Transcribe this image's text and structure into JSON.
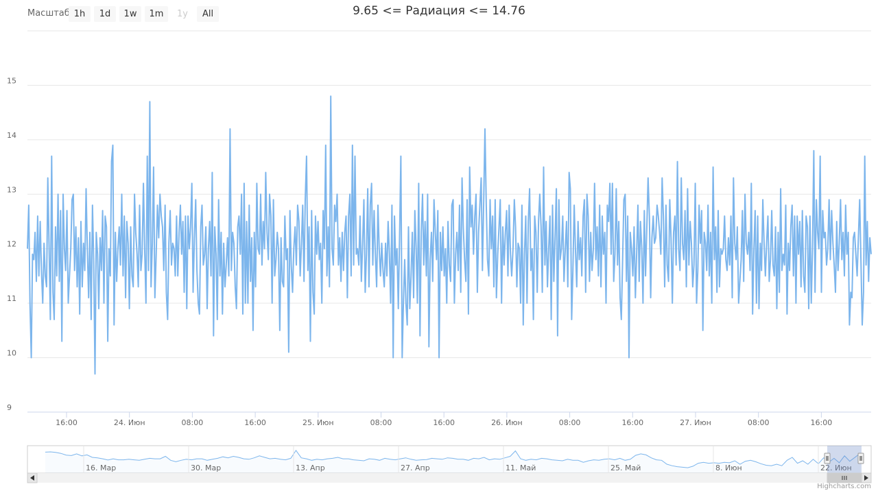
{
  "title": "9.65 <= Радиация <= 14.76",
  "range_selector": {
    "label": "Масштаб",
    "buttons": [
      {
        "label": "1h",
        "state": "normal"
      },
      {
        "label": "1d",
        "state": "normal"
      },
      {
        "label": "1w",
        "state": "normal"
      },
      {
        "label": "1m",
        "state": "normal"
      },
      {
        "label": "1y",
        "state": "disabled"
      },
      {
        "label": "All",
        "state": "normal"
      }
    ]
  },
  "credits": "Highcharts.com",
  "colors": {
    "series": "#7cb5ec",
    "grid": "#e6e6e6",
    "axis_text": "#666666",
    "navigator_mask": "rgba(102,133,194,0.3)",
    "scrollbar_track": "#f2f2f2",
    "scrollbar_thumb": "#cccccc"
  },
  "chart_data": {
    "type": "line",
    "title": "9.65 <= Радиация <= 14.76",
    "xlabel": "",
    "ylabel": "",
    "ylim": [
      9,
      16
    ],
    "yticks": [
      9,
      10,
      11,
      12,
      13,
      14,
      15
    ],
    "grid": true,
    "legend": "none",
    "x_tick_labels": [
      "16:00",
      "24. Июн",
      "08:00",
      "16:00",
      "25. Июн",
      "08:00",
      "16:00",
      "26. Июн",
      "08:00",
      "16:00",
      "27. Июн",
      "08:00",
      "16:00"
    ],
    "series": [
      {
        "values": [
          12.0,
          12.8,
          11.0,
          10.0,
          11.9,
          11.8,
          12.3,
          11.4,
          12.6,
          11.5,
          12.5,
          11.6,
          11.0,
          12.1,
          11.5,
          11.3,
          13.3,
          12.0,
          10.7,
          13.7,
          11.2,
          10.7,
          12.4,
          11.5,
          13.0,
          11.4,
          12.7,
          10.3,
          13.0,
          12.0,
          11.6,
          12.7,
          11.0,
          11.5,
          12.0,
          12.9,
          13.0,
          11.6,
          12.4,
          11.3,
          12.2,
          10.8,
          12.5,
          11.3,
          12.1,
          11.6,
          13.1,
          12.0,
          11.1,
          12.3,
          10.7,
          12.8,
          11.8,
          9.7,
          12.3,
          11.9,
          10.9,
          12.2,
          11.6,
          12.7,
          11.0,
          12.6,
          12.4,
          10.3,
          12.0,
          11.5,
          13.6,
          13.9,
          10.6,
          12.3,
          11.4,
          12.0,
          12.4,
          11.7,
          13.0,
          11.5,
          12.6,
          11.1,
          12.5,
          12.1,
          10.9,
          12.4,
          11.5,
          11.3,
          13.0,
          12.3,
          11.9,
          11.3,
          12.8,
          11.6,
          11.9,
          13.2,
          12.0,
          11.0,
          13.7,
          11.6,
          14.7,
          11.3,
          12.1,
          13.5,
          11.1,
          11.9,
          12.8,
          12.2,
          13.0,
          12.6,
          12.4,
          11.6,
          12.8,
          11.2,
          10.7,
          12.1,
          12.7,
          11.7,
          12.1,
          12.0,
          11.5,
          12.6,
          11.5,
          12.3,
          12.8,
          11.9,
          12.5,
          11.2,
          12.6,
          10.9,
          12.6,
          12.0,
          12.4,
          13.2,
          11.2,
          12.2,
          12.9,
          11.6,
          11.0,
          10.8,
          12.4,
          12.8,
          11.7,
          11.9,
          12.4,
          10.9,
          12.0,
          12.5,
          11.5,
          13.4,
          10.4,
          12.4,
          11.9,
          10.7,
          12.9,
          11.5,
          12.3,
          10.8,
          12.1,
          11.3,
          11.7,
          12.2,
          11.5,
          14.2,
          11.6,
          12.3,
          12.1,
          11.3,
          10.9,
          12.4,
          12.6,
          11.9,
          13.0,
          10.8,
          13.2,
          11.0,
          12.5,
          11.0,
          12.8,
          11.4,
          12.2,
          10.5,
          12.3,
          11.3,
          13.2,
          12.0,
          11.9,
          13.0,
          11.7,
          12.5,
          12.0,
          13.4,
          12.3,
          11.8,
          13.0,
          12.6,
          11.0,
          12.9,
          11.5,
          11.8,
          12.3,
          12.0,
          10.5,
          12.2,
          11.4,
          11.3,
          12.6,
          11.8,
          12.0,
          10.1,
          12.7,
          11.7,
          11.2,
          12.0,
          12.4,
          11.7,
          12.8,
          12.5,
          11.5,
          12.1,
          12.8,
          11.4,
          12.9,
          13.7,
          11.6,
          12.4,
          10.3,
          12.7,
          11.2,
          10.8,
          12.6,
          11.9,
          12.5,
          11.8,
          12.1,
          11.0,
          12.7,
          12.0,
          13.9,
          11.5,
          12.4,
          11.3,
          14.8,
          12.0,
          11.7,
          12.8,
          12.5,
          13.0,
          11.7,
          12.2,
          11.4,
          12.3,
          11.6,
          12.3,
          12.6,
          11.1,
          12.6,
          13.0,
          11.5,
          13.9,
          11.7,
          13.7,
          11.9,
          12.0,
          11.7,
          12.6,
          11.4,
          12.1,
          12.9,
          11.2,
          11.9,
          13.1,
          11.3,
          12.8,
          13.2,
          11.7,
          12.7,
          11.9,
          11.3,
          12.8,
          12.0,
          11.5,
          12.1,
          11.6,
          11.3,
          12.1,
          11.5,
          12.5,
          11.9,
          11.0,
          12.8,
          10.0,
          12.6,
          11.7,
          12.0,
          10.9,
          12.2,
          13.7,
          10.0,
          11.0,
          11.8,
          11.0,
          10.6,
          12.4,
          10.9,
          11.5,
          12.3,
          11.1,
          12.7,
          12.0,
          11.0,
          13.2,
          10.4,
          12.3,
          13.0,
          11.7,
          12.5,
          11.5,
          13.0,
          10.2,
          11.8,
          12.3,
          11.4,
          12.9,
          12.3,
          11.8,
          12.7,
          10.0,
          12.3,
          11.6,
          12.4,
          11.5,
          12.0,
          11.0,
          12.5,
          11.7,
          11.4,
          12.8,
          12.9,
          11.0,
          11.9,
          12.3,
          11.6,
          12.8,
          11.2,
          13.3,
          12.4,
          11.8,
          11.4,
          12.9,
          10.8,
          13.5,
          12.4,
          12.8,
          11.9,
          12.6,
          13.0,
          11.2,
          12.3,
          12.8,
          13.3,
          11.6,
          12.9,
          14.2,
          12.8,
          11.8,
          11.5,
          12.9,
          12.0,
          12.6,
          11.3,
          12.9,
          11.1,
          11.9,
          12.4,
          12.9,
          11.0,
          12.4,
          11.7,
          12.3,
          12.7,
          11.5,
          12.8,
          11.9,
          11.5,
          12.0,
          12.9,
          12.4,
          11.3,
          12.1,
          12.0,
          11.0,
          12.8,
          10.6,
          11.9,
          12.6,
          11.0,
          12.5,
          13.1,
          11.6,
          12.0,
          10.7,
          12.6,
          12.3,
          11.2,
          12.5,
          13.0,
          12.4,
          11.2,
          13.5,
          11.7,
          12.5,
          11.3,
          12.0,
          12.6,
          10.7,
          12.8,
          11.4,
          12.2,
          13.1,
          10.4,
          12.9,
          11.8,
          12.0,
          12.6,
          11.4,
          12.0,
          12.5,
          11.3,
          13.4,
          13.1,
          10.7,
          11.6,
          12.8,
          12.0,
          11.3,
          12.5,
          11.8,
          12.2,
          11.5,
          12.6,
          12.9,
          11.2,
          13.0,
          12.6,
          11.4,
          12.3,
          11.6,
          12.0,
          13.2,
          11.8,
          12.4,
          11.5,
          12.8,
          11.3,
          12.6,
          11.9,
          12.3,
          11.0,
          12.8,
          12.5,
          13.2,
          11.9,
          13.2,
          11.4,
          11.9,
          13.1,
          11.7,
          12.5,
          11.1,
          10.7,
          11.8,
          12.9,
          13.0,
          11.4,
          12.6,
          10.0,
          12.3,
          12.0,
          11.5,
          12.4,
          11.1,
          11.9,
          12.8,
          11.4,
          12.5,
          12.0,
          11.0,
          12.7,
          11.5,
          12.4,
          13.3,
          12.6,
          11.1,
          12.2,
          12.6,
          12.1,
          12.2,
          12.8,
          12.6,
          12.3,
          11.9,
          13.3,
          12.6,
          11.3,
          12.8,
          11.7,
          11.4,
          12.9,
          12.2,
          11.0,
          12.3,
          12.6,
          11.7,
          13.6,
          12.0,
          11.6,
          13.3,
          12.1,
          11.8,
          12.7,
          11.3,
          13.1,
          11.7,
          12.5,
          12.1,
          11.3,
          11.7,
          13.2,
          11.0,
          11.6,
          12.8,
          12.1,
          12.7,
          10.5,
          12.3,
          12.1,
          11.6,
          12.8,
          11.5,
          12.3,
          11.0,
          13.5,
          11.8,
          12.4,
          11.2,
          12.7,
          11.3,
          12.0,
          11.9,
          12.0,
          12.6,
          11.8,
          11.6,
          12.2,
          11.7,
          12.6,
          11.1,
          13.3,
          12.1,
          11.8,
          12.4,
          11.0,
          11.4,
          11.8,
          12.7,
          11.4,
          13.0,
          12.1,
          11.9,
          12.3,
          11.6,
          13.2,
          10.8,
          12.0,
          12.7,
          11.0,
          12.6,
          10.9,
          12.1,
          11.6,
          12.9,
          12.1,
          11.5,
          12.1,
          12.6,
          11.4,
          11.8,
          12.7,
          11.7,
          11.5,
          12.4,
          10.9,
          12.3,
          11.2,
          13.1,
          11.6,
          11.9,
          11.7,
          12.8,
          10.8,
          12.1,
          11.6,
          12.4,
          12.8,
          11.5,
          12.6,
          11.0,
          12.6,
          11.9,
          12.5,
          11.3,
          12.7,
          11.5,
          11.2,
          12.6,
          12.4,
          10.9,
          12.6,
          11.0,
          12.0,
          13.8,
          11.2,
          12.9,
          12.3,
          12.0,
          13.7,
          11.2,
          12.7,
          12.2,
          12.3,
          11.7,
          12.0,
          12.9,
          11.8,
          12.7,
          12.1,
          11.7,
          11.2,
          12.5,
          11.6,
          12.1,
          12.9,
          11.8,
          12.3,
          11.5,
          12.8,
          11.9,
          12.3,
          10.6,
          11.2,
          11.1,
          12.2,
          12.3,
          11.9,
          11.5,
          12.2,
          12.9,
          11.8,
          10.6,
          11.2,
          13.7,
          11.7,
          12.5,
          11.4,
          12.2,
          11.9
        ]
      }
    ]
  },
  "navigator": {
    "x_tick_labels": [
      "16. Мар",
      "30. Мар",
      "13. Апр",
      "27. Апр",
      "11. Май",
      "25. Май",
      "8. Июн",
      "22. Июн"
    ],
    "series_values": [
      0.85,
      0.86,
      0.84,
      0.8,
      0.73,
      0.71,
      0.78,
      0.7,
      0.74,
      0.64,
      0.62,
      0.58,
      0.53,
      0.58,
      0.54,
      0.54,
      0.56,
      0.54,
      0.52,
      0.56,
      0.6,
      0.58,
      0.58,
      0.68,
      0.52,
      0.46,
      0.52,
      0.56,
      0.54,
      0.58,
      0.58,
      0.52,
      0.56,
      0.6,
      0.66,
      0.62,
      0.68,
      0.64,
      0.58,
      0.56,
      0.62,
      0.7,
      0.64,
      0.58,
      0.6,
      0.56,
      0.54,
      0.6,
      0.92,
      0.62,
      0.58,
      0.52,
      0.56,
      0.54,
      0.58,
      0.6,
      0.64,
      0.58,
      0.58,
      0.54,
      0.52,
      0.5,
      0.58,
      0.56,
      0.52,
      0.6,
      0.56,
      0.54,
      0.58,
      0.62,
      0.56,
      0.52,
      0.54,
      0.55,
      0.6,
      0.58,
      0.56,
      0.62,
      0.6,
      0.56,
      0.56,
      0.52,
      0.6,
      0.58,
      0.64,
      0.54,
      0.58,
      0.56,
      0.62,
      0.68,
      0.9,
      0.58,
      0.52,
      0.56,
      0.54,
      0.6,
      0.58,
      0.54,
      0.52,
      0.5,
      0.56,
      0.52,
      0.52,
      0.44,
      0.5,
      0.54,
      0.52,
      0.56,
      0.58,
      0.54,
      0.6,
      0.52,
      0.56,
      0.72,
      0.78,
      0.74,
      0.62,
      0.54,
      0.52,
      0.36,
      0.3,
      0.26,
      0.24,
      0.22,
      0.28,
      0.4,
      0.44,
      0.4,
      0.42,
      0.4,
      0.44,
      0.42,
      0.5,
      0.36,
      0.48,
      0.52,
      0.46,
      0.38,
      0.32,
      0.3,
      0.36,
      0.3,
      0.52,
      0.64,
      0.4,
      0.5,
      0.36,
      0.56,
      0.38,
      0.62,
      0.44,
      0.6,
      0.42,
      0.7,
      0.48,
      0.64,
      0.8
    ]
  }
}
